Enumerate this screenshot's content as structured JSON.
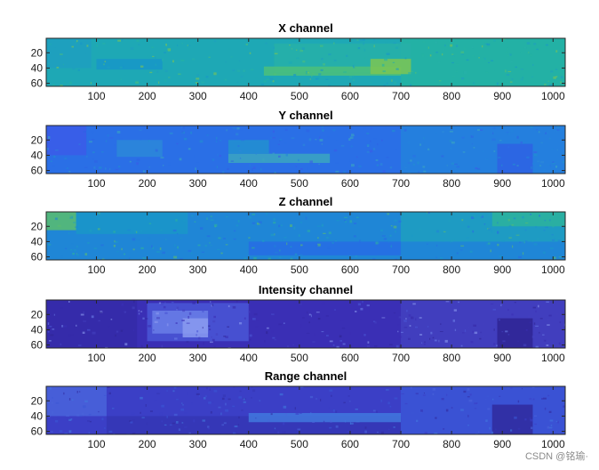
{
  "chart_data": [
    {
      "type": "heatmap",
      "title": "X channel",
      "xlim": [
        1,
        1024
      ],
      "ylim": [
        1,
        64
      ],
      "y_reversed": true,
      "xticks": [
        100,
        200,
        300,
        400,
        500,
        600,
        700,
        800,
        900,
        1000
      ],
      "yticks": [
        20,
        40,
        60
      ],
      "colormap": "parula",
      "base_color": "#1ea8b5",
      "regions": [
        {
          "x": [
            700,
            1024
          ],
          "y": [
            1,
            64
          ],
          "color": "#24b3a2"
        },
        {
          "x": [
            450,
            720
          ],
          "y": [
            8,
            45
          ],
          "color": "#27b0a8"
        },
        {
          "x": [
            430,
            700
          ],
          "y": [
            38,
            50
          ],
          "color": "#4cbf7a"
        },
        {
          "x": [
            1,
            90
          ],
          "y": [
            1,
            40
          ],
          "color": "#1e9fc0"
        },
        {
          "x": [
            100,
            230
          ],
          "y": [
            28,
            42
          ],
          "color": "#1896c8"
        },
        {
          "x": [
            640,
            720
          ],
          "y": [
            28,
            48
          ],
          "color": "#7cc553"
        }
      ]
    },
    {
      "type": "heatmap",
      "title": "Y channel",
      "xlim": [
        1,
        1024
      ],
      "ylim": [
        1,
        64
      ],
      "y_reversed": true,
      "xticks": [
        100,
        200,
        300,
        400,
        500,
        600,
        700,
        800,
        900,
        1000
      ],
      "yticks": [
        20,
        40,
        60
      ],
      "colormap": "parula",
      "base_color": "#2a6fe6",
      "regions": [
        {
          "x": [
            700,
            1024
          ],
          "y": [
            1,
            64
          ],
          "color": "#2382dc"
        },
        {
          "x": [
            1,
            80
          ],
          "y": [
            1,
            40
          ],
          "color": "#3b5ce8"
        },
        {
          "x": [
            140,
            230
          ],
          "y": [
            20,
            42
          ],
          "color": "#2c88d8"
        },
        {
          "x": [
            360,
            560
          ],
          "y": [
            38,
            50
          ],
          "color": "#3ba6c0"
        },
        {
          "x": [
            890,
            960
          ],
          "y": [
            25,
            64
          ],
          "color": "#2e62e4"
        },
        {
          "x": [
            360,
            440
          ],
          "y": [
            20,
            38
          ],
          "color": "#2290cf"
        }
      ]
    },
    {
      "type": "heatmap",
      "title": "Z channel",
      "xlim": [
        1,
        1024
      ],
      "ylim": [
        1,
        64
      ],
      "y_reversed": true,
      "xticks": [
        100,
        200,
        300,
        400,
        500,
        600,
        700,
        800,
        900,
        1000
      ],
      "yticks": [
        20,
        40,
        60
      ],
      "colormap": "parula",
      "base_color": "#1f86d6",
      "regions": [
        {
          "x": [
            700,
            1024
          ],
          "y": [
            1,
            40
          ],
          "color": "#1e9fc0"
        },
        {
          "x": [
            1,
            60
          ],
          "y": [
            1,
            25
          ],
          "color": "#5bbd6e"
        },
        {
          "x": [
            60,
            280
          ],
          "y": [
            1,
            30
          ],
          "color": "#1a97c8"
        },
        {
          "x": [
            400,
            700
          ],
          "y": [
            40,
            58
          ],
          "color": "#276ce4"
        },
        {
          "x": [
            880,
            1024
          ],
          "y": [
            1,
            20
          ],
          "color": "#2db39c"
        }
      ]
    },
    {
      "type": "heatmap",
      "title": "Intensity channel",
      "xlim": [
        1,
        1024
      ],
      "ylim": [
        1,
        64
      ],
      "y_reversed": true,
      "xticks": [
        100,
        200,
        300,
        400,
        500,
        600,
        700,
        800,
        900,
        1000
      ],
      "yticks": [
        20,
        40,
        60
      ],
      "colormap": "parula",
      "base_color": "#3a2fb5",
      "regions": [
        {
          "x": [
            700,
            1024
          ],
          "y": [
            1,
            64
          ],
          "color": "#4341c0"
        },
        {
          "x": [
            200,
            400
          ],
          "y": [
            5,
            55
          ],
          "color": "#4a56d6"
        },
        {
          "x": [
            210,
            320
          ],
          "y": [
            15,
            45
          ],
          "color": "#6a7ee8"
        },
        {
          "x": [
            270,
            320
          ],
          "y": [
            25,
            50
          ],
          "color": "#8a9af0"
        },
        {
          "x": [
            1,
            180
          ],
          "y": [
            1,
            64
          ],
          "color": "#352aa8"
        },
        {
          "x": [
            890,
            960
          ],
          "y": [
            25,
            64
          ],
          "color": "#2f2494"
        }
      ]
    },
    {
      "type": "heatmap",
      "title": "Range channel",
      "xlim": [
        1,
        1024
      ],
      "ylim": [
        1,
        64
      ],
      "y_reversed": true,
      "xticks": [
        100,
        200,
        300,
        400,
        500,
        600,
        700,
        800,
        900,
        1000
      ],
      "yticks": [
        20,
        40,
        60
      ],
      "colormap": "parula",
      "base_color": "#3b3fc6",
      "regions": [
        {
          "x": [
            700,
            1024
          ],
          "y": [
            1,
            64
          ],
          "color": "#3b56d6"
        },
        {
          "x": [
            1,
            120
          ],
          "y": [
            1,
            40
          ],
          "color": "#4a64da"
        },
        {
          "x": [
            120,
            700
          ],
          "y": [
            40,
            64
          ],
          "color": "#3536b4"
        },
        {
          "x": [
            400,
            700
          ],
          "y": [
            36,
            48
          ],
          "color": "#4178de"
        },
        {
          "x": [
            880,
            960
          ],
          "y": [
            25,
            64
          ],
          "color": "#302a9e"
        }
      ]
    }
  ],
  "watermark": "CSDN @铭瑜·"
}
